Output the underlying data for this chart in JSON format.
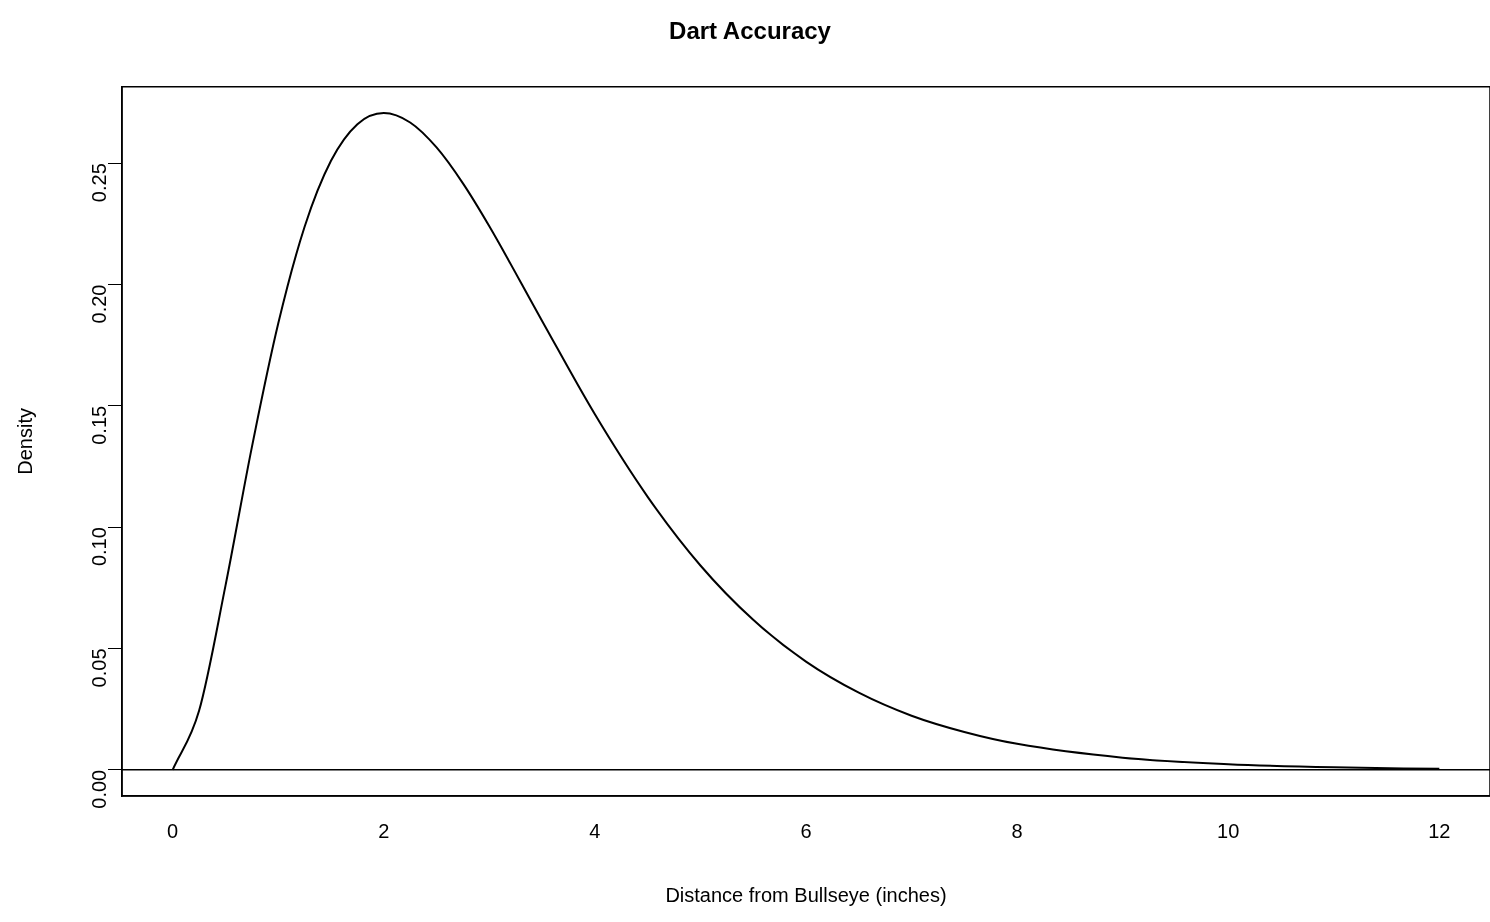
{
  "chart_data": {
    "type": "line",
    "title": "Dart Accuracy",
    "xlabel": "Distance from Bullseye (inches)",
    "ylabel": "Density",
    "x": [
      0,
      0.25,
      0.5,
      0.75,
      1,
      1.25,
      1.5,
      1.75,
      2,
      2.25,
      2.5,
      2.75,
      3,
      3.5,
      4,
      4.5,
      5,
      5.5,
      6,
      6.5,
      7,
      7.5,
      8,
      9,
      10,
      11,
      12
    ],
    "series": [
      {
        "color": "#000000",
        "values": [
          0,
          0.0243,
          0.0758,
          0.1329,
          0.1839,
          0.2238,
          0.251,
          0.2661,
          0.2707,
          0.2668,
          0.2565,
          0.2417,
          0.224,
          0.185,
          0.1465,
          0.1125,
          0.0842,
          0.0618,
          0.0446,
          0.0318,
          0.0223,
          0.0156,
          0.0107,
          0.005,
          0.0023,
          0.001,
          0.0004
        ]
      }
    ],
    "xlim": [
      -0.48,
      12.48
    ],
    "xticks": [
      0,
      2,
      4,
      6,
      8,
      10,
      12
    ],
    "ylim": [
      -0.0108,
      0.2815
    ],
    "yticks": [
      {
        "value": 0,
        "label": "0.00"
      },
      {
        "value": 0.05,
        "label": "0.05"
      },
      {
        "value": 0.1,
        "label": "0.10"
      },
      {
        "value": 0.15,
        "label": "0.15"
      },
      {
        "value": 0.2,
        "label": "0.20"
      },
      {
        "value": 0.25,
        "label": "0.25"
      }
    ],
    "ref_lines": [
      {
        "axis": "y",
        "value": 0,
        "color": "#000000"
      }
    ],
    "grid": false,
    "legend": false,
    "marker": "none",
    "line_style": "solid"
  }
}
